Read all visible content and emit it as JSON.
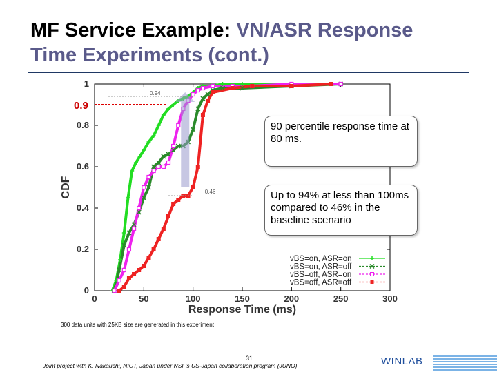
{
  "slide": {
    "title_part1": "MF Service Example: ",
    "title_highlight": "VN/ASR Response",
    "title_line2": "Time Experiments (cont.)",
    "footnote": "300 data units with 25KB size are generated in this experiment",
    "footer": "Joint project with K. Nakauchi, NICT, Japan under NSF’s US-Japan collaboration program (JUNO)",
    "page_number": "31",
    "logo": "WINLAB"
  },
  "callouts": {
    "first": "90 percentile response time at 80 ms.",
    "second": "Up to 94% at less than 100ms compared to 46% in the baseline scenario"
  },
  "colors": {
    "vbs_on_asr_on": "#22dd22",
    "vbs_on_asr_off": "#2a8a2a",
    "vbs_off_asr_on": "#ee22ee",
    "vbs_off_asr_off": "#ee2222",
    "highlight_arrow": "#9999cc"
  },
  "chart_data": {
    "type": "line",
    "xlabel": "Response Time (ms)",
    "ylabel": "CDF",
    "xlim": [
      0,
      300
    ],
    "ylim": [
      0,
      1
    ],
    "xticks": [
      "0",
      "50",
      "100",
      "150",
      "200",
      "250",
      "300"
    ],
    "yticks": [
      "0",
      "0.2",
      "0.4",
      "0.6",
      "0.8",
      "1"
    ],
    "legend_position": "bottom-right",
    "annotations": {
      "label_094": "0.94",
      "label_046": "0.46",
      "label_09": "0.9"
    },
    "series": [
      {
        "name": "vBS=on, ASR=on",
        "marker": "+",
        "x": [
          18,
          22,
          26,
          30,
          34,
          38,
          42,
          46,
          50,
          55,
          60,
          65,
          70,
          75,
          80,
          85,
          90,
          95,
          100,
          105,
          110,
          120,
          130,
          150,
          200
        ],
        "y": [
          0.0,
          0.05,
          0.15,
          0.28,
          0.45,
          0.58,
          0.62,
          0.65,
          0.68,
          0.72,
          0.75,
          0.8,
          0.85,
          0.88,
          0.9,
          0.92,
          0.93,
          0.94,
          0.96,
          0.98,
          0.99,
          0.99,
          1.0,
          1.0,
          1.0
        ]
      },
      {
        "name": "vBS=on, ASR=off",
        "marker": "x",
        "x": [
          20,
          25,
          30,
          35,
          40,
          45,
          50,
          55,
          60,
          65,
          70,
          75,
          80,
          85,
          90,
          95,
          100,
          105,
          110,
          115,
          120,
          130,
          150,
          200,
          250
        ],
        "y": [
          0.0,
          0.1,
          0.22,
          0.28,
          0.32,
          0.38,
          0.45,
          0.5,
          0.6,
          0.62,
          0.65,
          0.66,
          0.68,
          0.7,
          0.7,
          0.72,
          0.78,
          0.88,
          0.93,
          0.95,
          0.97,
          0.98,
          0.98,
          0.99,
          1.0
        ]
      },
      {
        "name": "vBS=off, ASR=on",
        "marker": "square-open",
        "x": [
          20,
          25,
          30,
          35,
          40,
          45,
          50,
          55,
          60,
          65,
          70,
          75,
          80,
          85,
          90,
          95,
          100,
          105,
          110,
          120,
          140,
          160,
          200,
          250
        ],
        "y": [
          0.0,
          0.05,
          0.1,
          0.2,
          0.3,
          0.4,
          0.5,
          0.55,
          0.58,
          0.6,
          0.6,
          0.62,
          0.7,
          0.8,
          0.88,
          0.92,
          0.95,
          0.97,
          0.98,
          0.99,
          0.99,
          0.99,
          1.0,
          1.0
        ]
      },
      {
        "name": "vBS=off, ASR=off",
        "marker": "square",
        "x": [
          25,
          30,
          35,
          40,
          45,
          50,
          55,
          60,
          65,
          70,
          75,
          80,
          85,
          90,
          95,
          100,
          105,
          110,
          115,
          120,
          140,
          160,
          200,
          240
        ],
        "y": [
          0.0,
          0.02,
          0.06,
          0.08,
          0.1,
          0.12,
          0.16,
          0.2,
          0.25,
          0.3,
          0.36,
          0.42,
          0.44,
          0.46,
          0.46,
          0.5,
          0.6,
          0.85,
          0.92,
          0.96,
          0.98,
          0.99,
          0.99,
          1.0
        ]
      }
    ]
  }
}
